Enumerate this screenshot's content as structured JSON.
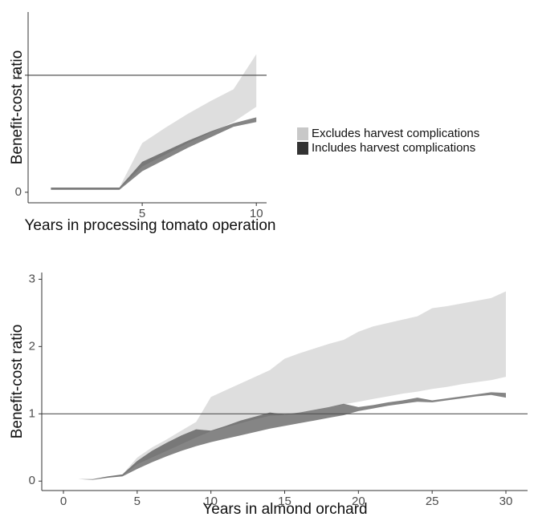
{
  "chart_data": [
    {
      "type": "band",
      "x_label": "Years in processing tomato operation",
      "y_label": "Benefit-cost ratio",
      "x": [
        1,
        2,
        3,
        4,
        5,
        6,
        7,
        8,
        9,
        10
      ],
      "xlim": [
        0,
        10.45
      ],
      "ylim": [
        -0.09,
        1.54
      ],
      "xticks": [
        5,
        10
      ],
      "yticks": [
        0,
        1
      ],
      "hline": 1,
      "legend": "right",
      "alpha": 0.6,
      "series": [
        {
          "name": "Excludes harvest complications",
          "color": "#c8c8c8",
          "lower": [
            0.03,
            0.03,
            0.03,
            0.03,
            0.22,
            0.32,
            0.42,
            0.51,
            0.6,
            0.73
          ],
          "upper": [
            0.04,
            0.04,
            0.04,
            0.04,
            0.42,
            0.55,
            0.67,
            0.78,
            0.88,
            1.18
          ]
        },
        {
          "name": "Includes harvest complications",
          "color": "#333333",
          "lower": [
            0.02,
            0.02,
            0.02,
            0.02,
            0.18,
            0.28,
            0.38,
            0.47,
            0.56,
            0.6
          ],
          "upper": [
            0.04,
            0.04,
            0.04,
            0.04,
            0.26,
            0.35,
            0.44,
            0.52,
            0.59,
            0.64
          ]
        }
      ]
    },
    {
      "type": "band",
      "x_label": "Years in almond orchard",
      "y_label": "Benefit-cost ratio",
      "x": [
        1,
        2,
        3,
        4,
        5,
        6,
        7,
        8,
        9,
        10,
        11,
        12,
        13,
        14,
        15,
        16,
        17,
        18,
        19,
        20,
        21,
        22,
        23,
        24,
        25,
        26,
        27,
        28,
        29,
        30
      ],
      "xlim": [
        -1.47,
        31.47
      ],
      "ylim": [
        -0.14,
        3.1
      ],
      "xticks": [
        0,
        5,
        10,
        15,
        20,
        25,
        30
      ],
      "yticks": [
        0,
        1,
        2,
        3
      ],
      "hline": 1,
      "legend": "none",
      "alpha": 0.6,
      "series": [
        {
          "name": "Excludes harvest complications",
          "color": "#c8c8c8",
          "lower": [
            0.03,
            0.03,
            0.05,
            0.08,
            0.25,
            0.35,
            0.45,
            0.55,
            0.65,
            0.74,
            0.8,
            0.86,
            0.92,
            0.97,
            0.98,
            1.02,
            1.06,
            1.1,
            1.14,
            1.18,
            1.22,
            1.26,
            1.3,
            1.33,
            1.37,
            1.4,
            1.44,
            1.47,
            1.5,
            1.55
          ],
          "upper": [
            0.03,
            0.03,
            0.07,
            0.1,
            0.35,
            0.5,
            0.62,
            0.75,
            0.88,
            1.25,
            1.35,
            1.45,
            1.55,
            1.65,
            1.82,
            1.9,
            1.97,
            2.04,
            2.1,
            2.22,
            2.3,
            2.35,
            2.4,
            2.45,
            2.57,
            2.6,
            2.64,
            2.68,
            2.72,
            2.82
          ]
        },
        {
          "name": "Includes harvest complications",
          "color": "#333333",
          "lower": [
            0.03,
            0.02,
            0.05,
            0.07,
            0.18,
            0.28,
            0.37,
            0.45,
            0.52,
            0.58,
            0.63,
            0.68,
            0.73,
            0.78,
            0.82,
            0.86,
            0.9,
            0.94,
            0.98,
            1.04,
            1.08,
            1.12,
            1.15,
            1.18,
            1.17,
            1.2,
            1.23,
            1.26,
            1.28,
            1.24
          ],
          "upper": [
            0.03,
            0.03,
            0.07,
            0.1,
            0.3,
            0.45,
            0.57,
            0.68,
            0.77,
            0.75,
            0.82,
            0.9,
            0.96,
            1.02,
            0.99,
            1.02,
            1.06,
            1.1,
            1.15,
            1.1,
            1.13,
            1.17,
            1.2,
            1.24,
            1.2,
            1.23,
            1.26,
            1.29,
            1.32,
            1.31
          ]
        }
      ]
    }
  ]
}
